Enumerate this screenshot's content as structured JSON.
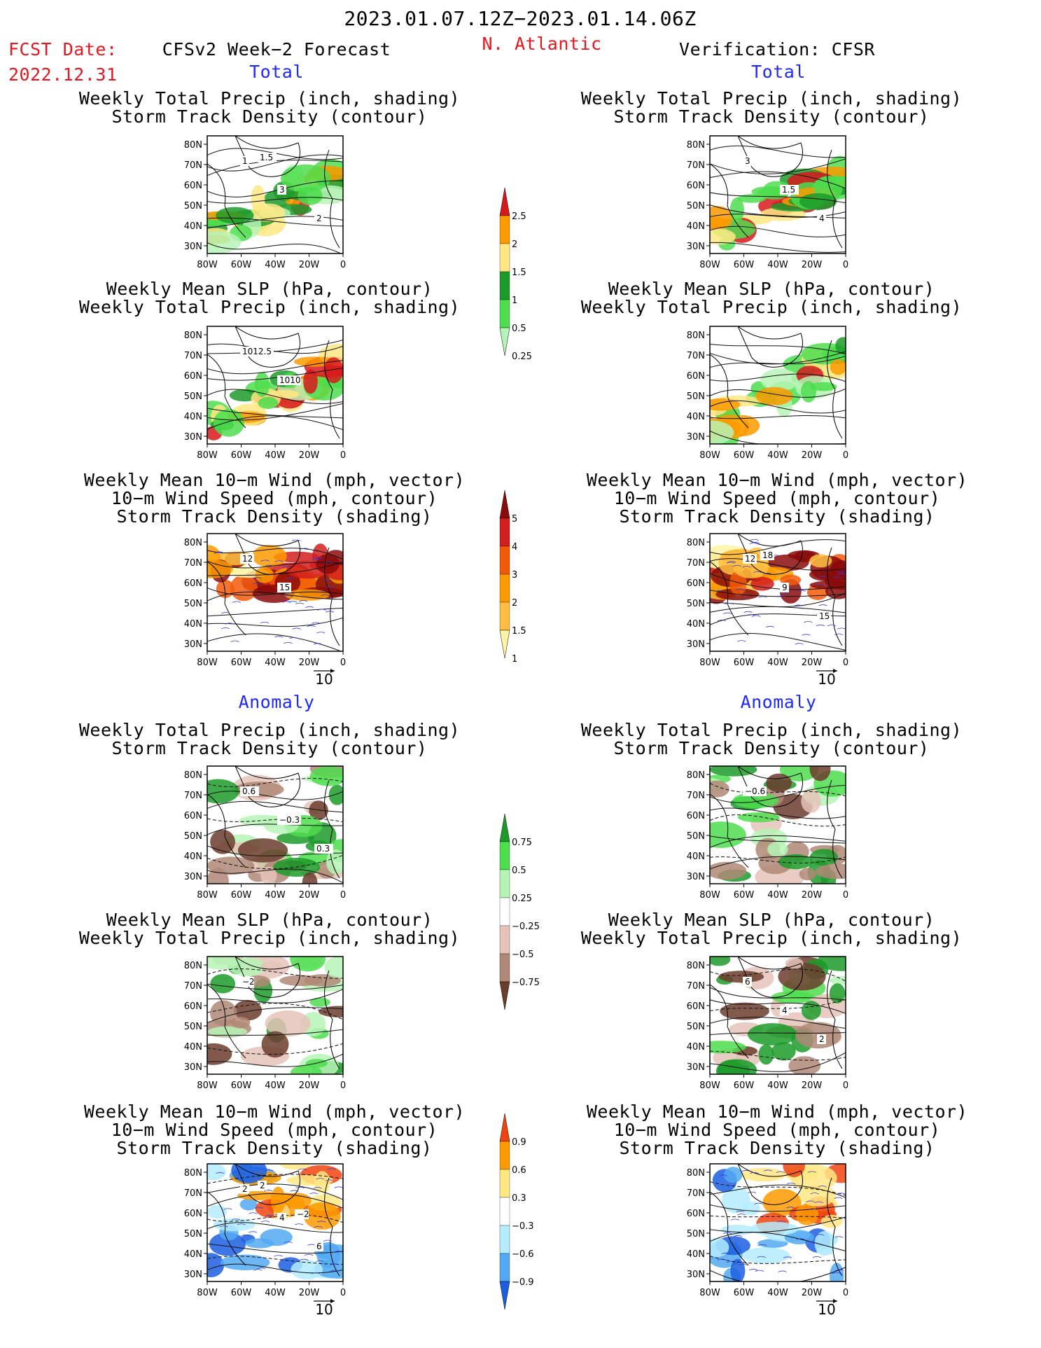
{
  "header": {
    "date_range": "2023.01.07.12Z−2023.01.14.06Z",
    "fcst_label": "FCST Date:",
    "fcst_date": "2022.12.31",
    "left_title": "CFSv2 Week−2 Forecast",
    "region": "N. Atlantic",
    "right_title": "Verification: CFSR"
  },
  "sections": {
    "total": "Total",
    "anomaly": "Anomaly"
  },
  "panel_titles": {
    "precip_storm": [
      "Weekly Total Precip (inch, shading)",
      "Storm Track Density (contour)"
    ],
    "slp_precip": [
      "Weekly Mean SLP (hPa, contour)",
      "Weekly Total Precip (inch, shading)"
    ],
    "wind_storm": [
      "Weekly Mean 10−m Wind (mph, vector)",
      "10−m Wind Speed (mph, contour)",
      "Storm Track Density (shading)"
    ]
  },
  "axes": {
    "lat_ticks": [
      "80N",
      "70N",
      "60N",
      "50N",
      "40N",
      "30N"
    ],
    "lon_ticks": [
      "80W",
      "60W",
      "40W",
      "20W",
      "0"
    ]
  },
  "vector_ref": "10",
  "colorbars": [
    {
      "labels": [
        "2.5",
        "2",
        "1.5",
        "1",
        "0.5",
        "0.25"
      ],
      "colors": [
        "#d7191c",
        "#fc9a00",
        "#ffe884",
        "#1c9b2a",
        "#4ddd4d",
        "#b6f3b6"
      ]
    },
    {
      "labels": [
        "5",
        "4",
        "3",
        "2",
        "1.5",
        "1"
      ],
      "colors": [
        "#8b0a0a",
        "#d21e1e",
        "#f25a0a",
        "#fc9a00",
        "#ffbe40",
        "#fff3a6"
      ]
    },
    {
      "labels": [
        "0.75",
        "0.5",
        "0.25",
        "−0.25",
        "−0.5",
        "−0.75"
      ],
      "colors": [
        "#1c9b2a",
        "#4ddd4d",
        "#b6f3b6",
        "#ffffff",
        "#e5c3b8",
        "#b08877",
        "#6b3d2e"
      ]
    },
    {
      "labels": [
        "0.9",
        "0.6",
        "0.3",
        "−0.3",
        "−0.6",
        "−0.9"
      ],
      "colors": [
        "#f04410",
        "#fc9a00",
        "#ffe884",
        "#ffffff",
        "#b4ecff",
        "#52a9f2",
        "#1c5fe0"
      ]
    }
  ],
  "contour_labels": {
    "p1l": [
      "1",
      "3",
      "2",
      "1.5"
    ],
    "p1r": [
      "3",
      "1.5",
      "4"
    ],
    "p2l": [
      "1012.5",
      "1010"
    ],
    "p3l": [
      "12",
      "15"
    ],
    "p3r": [
      "12",
      "9",
      "15",
      "18"
    ],
    "p4l": [
      "0.6",
      "−0.3",
      "0.3"
    ],
    "p4r": [
      "−0.6"
    ],
    "p5l": [
      "−2"
    ],
    "p5r": [
      "6",
      "4",
      "2"
    ],
    "p6l": [
      "2",
      "4",
      "6",
      "2",
      "−2"
    ]
  }
}
